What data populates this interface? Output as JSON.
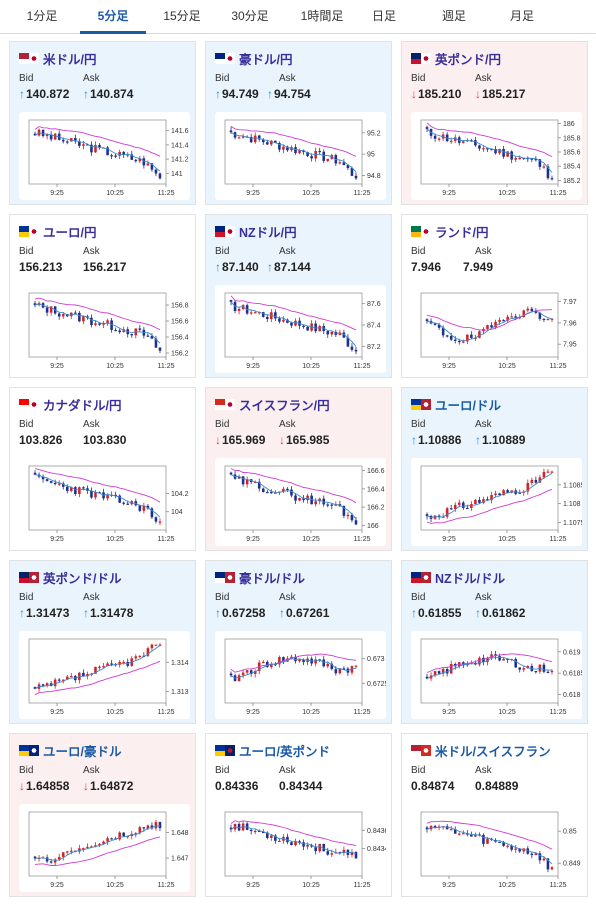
{
  "tabs": [
    {
      "label": "1分足",
      "active": false
    },
    {
      "label": "5分足",
      "active": true
    },
    {
      "label": "15分足",
      "active": false
    },
    {
      "label": "30分足",
      "active": false
    },
    {
      "label": "1時間足",
      "active": false
    },
    {
      "label": "日足",
      "active": false
    },
    {
      "label": "週足",
      "active": false
    },
    {
      "label": "月足",
      "active": false
    }
  ],
  "colors": {
    "accent": "#1a5aa8",
    "up_bg": "#eaf4fc",
    "down_bg": "#fcefef",
    "candle_up": "#d02525",
    "candle_down": "#1f2f8c",
    "ma_pink": "#d23bd2",
    "ma_blue": "#3a8ad0",
    "arrow_up": "#2b8fd6",
    "arrow_down": "#d94343"
  },
  "labels": {
    "bid": "Bid",
    "ask": "Ask"
  },
  "x_ticks": [
    "9:25",
    "10:25",
    "11:25"
  ],
  "pairs": [
    {
      "name": "米ドル/円",
      "flags": [
        "us",
        "jp"
      ],
      "bid": "140.872",
      "ask": "140.874",
      "dir": "up",
      "name_color": "purple",
      "chart_data": {
        "type": "candlestick",
        "y_ticks": [
          "141.6",
          "141.4",
          "141.2",
          "141"
        ],
        "ylim": [
          140.85,
          141.75
        ],
        "trend": "down",
        "end_shape": "drop",
        "seed": 3
      }
    },
    {
      "name": "豪ドル/円",
      "flags": [
        "au",
        "jp"
      ],
      "bid": "94.749",
      "ask": "94.754",
      "dir": "up",
      "name_color": "purple",
      "chart_data": {
        "type": "candlestick",
        "y_ticks": [
          "95.2",
          "95",
          "94.8"
        ],
        "ylim": [
          94.72,
          95.32
        ],
        "trend": "down",
        "end_shape": "drop",
        "seed": 7
      }
    },
    {
      "name": "英ポンド/円",
      "flags": [
        "gb",
        "jp"
      ],
      "bid": "185.210",
      "ask": "185.217",
      "dir": "down",
      "name_color": "purple",
      "chart_data": {
        "type": "candlestick",
        "y_ticks": [
          "186",
          "185.8",
          "185.6",
          "185.4",
          "185.2"
        ],
        "ylim": [
          185.15,
          186.05
        ],
        "trend": "down",
        "end_shape": "drop",
        "seed": 11
      }
    },
    {
      "name": "ユーロ/円",
      "flags": [
        "eu",
        "jp"
      ],
      "bid": "156.213",
      "ask": "156.217",
      "dir": "none",
      "name_color": "purple",
      "chart_data": {
        "type": "candlestick",
        "y_ticks": [
          "156.8",
          "156.6",
          "156.4",
          "156.2"
        ],
        "ylim": [
          156.15,
          156.95
        ],
        "trend": "down",
        "end_shape": "drop",
        "seed": 13
      }
    },
    {
      "name": "NZドル/円",
      "flags": [
        "nz",
        "jp"
      ],
      "bid": "87.140",
      "ask": "87.144",
      "dir": "up",
      "name_color": "purple",
      "chart_data": {
        "type": "candlestick",
        "y_ticks": [
          "87.6",
          "87.4",
          "87.2"
        ],
        "ylim": [
          87.1,
          87.7
        ],
        "trend": "down",
        "end_shape": "drop",
        "seed": 17
      }
    },
    {
      "name": "ランド/円",
      "flags": [
        "za",
        "jp"
      ],
      "bid": "7.946",
      "ask": "7.949",
      "dir": "none",
      "name_color": "purple",
      "chart_data": {
        "type": "candlestick",
        "y_ticks": [
          "7.97",
          "7.96",
          "7.95"
        ],
        "ylim": [
          7.944,
          7.974
        ],
        "trend": "dip",
        "end_shape": "drop",
        "seed": 19
      }
    },
    {
      "name": "カナダドル/円",
      "flags": [
        "ca",
        "jp"
      ],
      "bid": "103.826",
      "ask": "103.830",
      "dir": "none",
      "name_color": "purple",
      "chart_data": {
        "type": "candlestick",
        "y_ticks": [
          "104.2",
          "104"
        ],
        "ylim": [
          103.8,
          104.5
        ],
        "trend": "down",
        "end_shape": "drop",
        "seed": 23
      }
    },
    {
      "name": "スイスフラン/円",
      "flags": [
        "ch",
        "jp"
      ],
      "bid": "165.969",
      "ask": "165.985",
      "dir": "down",
      "name_color": "purple",
      "chart_data": {
        "type": "candlestick",
        "y_ticks": [
          "166.6",
          "166.4",
          "166.2",
          "166"
        ],
        "ylim": [
          165.95,
          166.65
        ],
        "trend": "down",
        "end_shape": "drop",
        "seed": 29
      }
    },
    {
      "name": "ユーロ/ドル",
      "flags": [
        "eu",
        "us"
      ],
      "bid": "1.10886",
      "ask": "1.10889",
      "dir": "up",
      "name_color": "blue",
      "chart_data": {
        "type": "candlestick",
        "y_ticks": [
          "1.1085",
          "1.108",
          "1.1075"
        ],
        "ylim": [
          1.1073,
          1.109
        ],
        "trend": "up",
        "end_shape": "rise",
        "seed": 31
      }
    },
    {
      "name": "英ポンド/ドル",
      "flags": [
        "gb",
        "us"
      ],
      "bid": "1.31473",
      "ask": "1.31478",
      "dir": "up",
      "name_color": "purple",
      "chart_data": {
        "type": "candlestick",
        "y_ticks": [
          "1.314",
          "1.313"
        ],
        "ylim": [
          1.3126,
          1.3148
        ],
        "trend": "up",
        "end_shape": "rise",
        "seed": 37
      }
    },
    {
      "name": "豪ドル/ドル",
      "flags": [
        "au",
        "us"
      ],
      "bid": "0.67258",
      "ask": "0.67261",
      "dir": "up",
      "name_color": "purple",
      "chart_data": {
        "type": "candlestick",
        "y_ticks": [
          "0.673",
          "0.6725"
        ],
        "ylim": [
          0.6721,
          0.6734
        ],
        "trend": "hump",
        "end_shape": "rise",
        "seed": 41
      }
    },
    {
      "name": "NZドル/ドル",
      "flags": [
        "nz",
        "us"
      ],
      "bid": "0.61855",
      "ask": "0.61862",
      "dir": "up",
      "name_color": "purple",
      "chart_data": {
        "type": "candlestick",
        "y_ticks": [
          "0.619",
          "0.6185",
          "0.618"
        ],
        "ylim": [
          0.6178,
          0.6193
        ],
        "trend": "hump",
        "end_shape": "rise",
        "seed": 43
      }
    },
    {
      "name": "ユーロ/豪ドル",
      "flags": [
        "eu",
        "au"
      ],
      "bid": "1.64858",
      "ask": "1.64872",
      "dir": "down",
      "name_color": "blue",
      "chart_data": {
        "type": "candlestick",
        "y_ticks": [
          "1.648",
          "1.647"
        ],
        "ylim": [
          1.6463,
          1.6488
        ],
        "trend": "up",
        "end_shape": "flat",
        "seed": 47
      }
    },
    {
      "name": "ユーロ/英ポンド",
      "flags": [
        "eu",
        "gb"
      ],
      "bid": "0.84336",
      "ask": "0.84344",
      "dir": "none",
      "name_color": "blue",
      "chart_data": {
        "type": "candlestick",
        "y_ticks": [
          "0.8436",
          "0.8434"
        ],
        "ylim": [
          0.8431,
          0.8438
        ],
        "trend": "down",
        "end_shape": "flat",
        "seed": 53
      }
    },
    {
      "name": "米ドル/スイスフラン",
      "flags": [
        "us",
        "ch"
      ],
      "bid": "0.84874",
      "ask": "0.84889",
      "dir": "none",
      "name_color": "blue",
      "chart_data": {
        "type": "candlestick",
        "y_ticks": [
          "0.85",
          "0.849"
        ],
        "ylim": [
          0.8486,
          0.8506
        ],
        "trend": "down",
        "end_shape": "drop",
        "seed": 59
      }
    }
  ]
}
